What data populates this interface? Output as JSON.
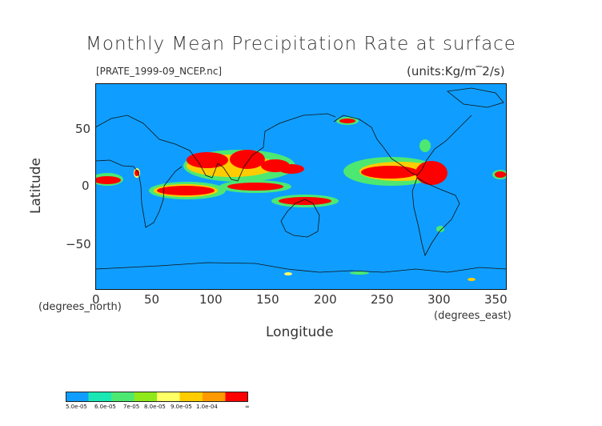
{
  "title": "Monthly Mean Precipitation Rate at surface",
  "file_label": "[PRATE_1999-09_NCEP.nc]",
  "units_label": "(units:Kg/m^-2/s)",
  "colors": {
    "background": "#0f9eff",
    "levels": [
      "#0f9eff",
      "#19e8b4",
      "#4de872",
      "#8fe81a",
      "#ffff66",
      "#ffcc00",
      "#ff9900",
      "#ff0000"
    ],
    "coast": "#111111"
  },
  "chart_data": {
    "type": "heatmap",
    "title": "Monthly Mean Precipitation Rate at surface",
    "xlabel": "Longitude",
    "ylabel": "Latitude",
    "x_units": "(degrees_east)",
    "y_units": "(degrees_north)",
    "xlim": [
      0,
      360
    ],
    "ylim": [
      -90,
      90
    ],
    "x_ticks": [
      "0",
      "50",
      "100",
      "150",
      "200",
      "250",
      "300",
      "350"
    ],
    "y_ticks": [
      "50",
      "0",
      "−50"
    ],
    "colorbar": {
      "labels": [
        "5.0e-05",
        "6.0e-05",
        "7e-05",
        "8.0e-05",
        "9.0e-05",
        "1.0e-04",
        "∞"
      ]
    },
    "high_precip_regions": [
      {
        "lon": [
          -5,
          15
        ],
        "lat": [
          5,
          12
        ]
      },
      {
        "lon": [
          55,
          95
        ],
        "lat": [
          -8,
          0
        ]
      },
      {
        "lon": [
          85,
          150
        ],
        "lat": [
          8,
          28
        ]
      },
      {
        "lon": [
          105,
          170
        ],
        "lat": [
          -5,
          3
        ]
      },
      {
        "lon": [
          150,
          205
        ],
        "lat": [
          -18,
          -10
        ]
      },
      {
        "lon": [
          235,
          320
        ],
        "lat": [
          0,
          18
        ]
      },
      {
        "lon": [
          350,
          360
        ],
        "lat": [
          5,
          12
        ]
      }
    ]
  }
}
